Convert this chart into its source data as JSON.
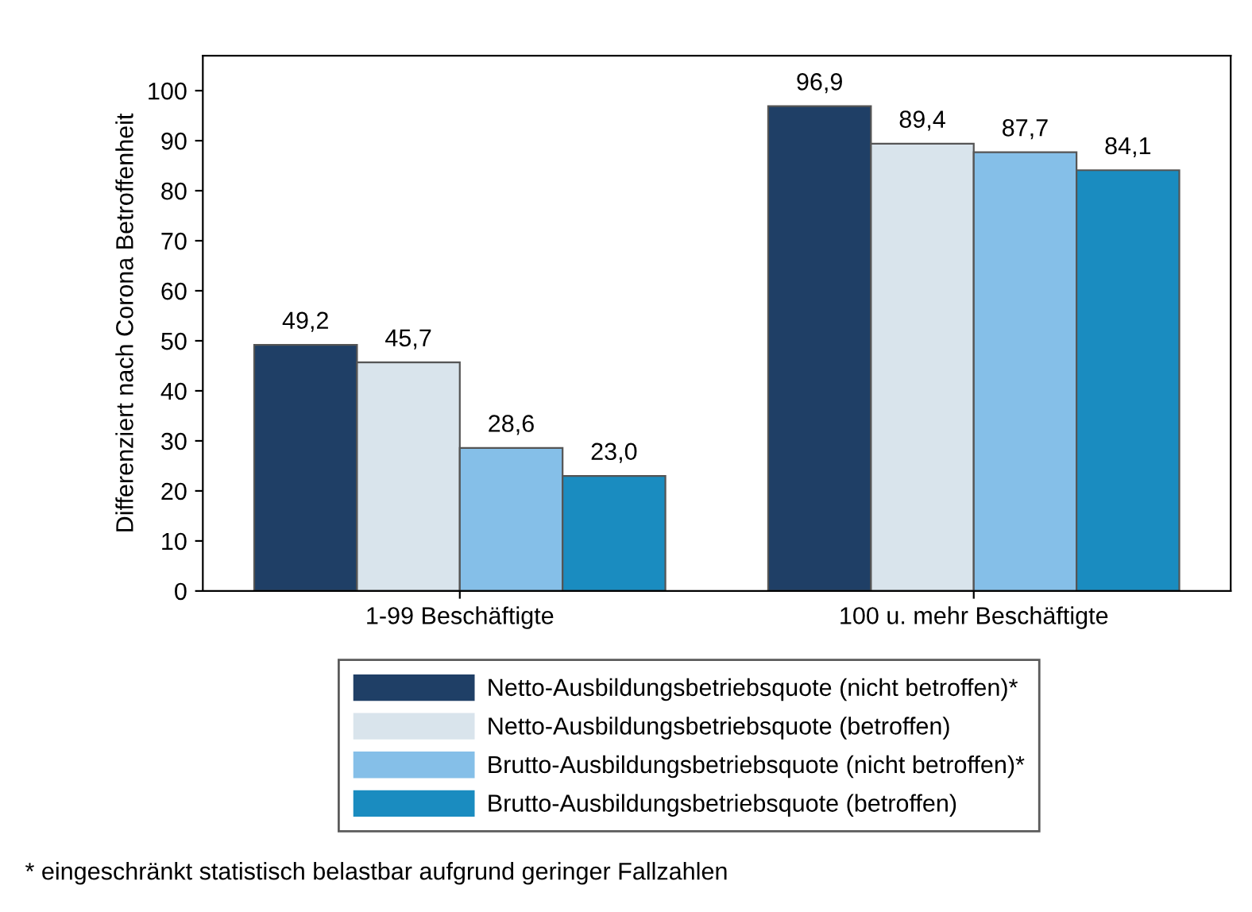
{
  "chart_data": {
    "type": "bar",
    "ylabel": "Differenziert nach Corona Betroffenheit",
    "categories": [
      "1-99 Beschäftigte",
      "100 u. mehr Beschäftigte"
    ],
    "series": [
      {
        "name": "Netto-Ausbildungsbetriebsquote (nicht betroffen)*",
        "color": "#1f3f66",
        "values": [
          49.2,
          96.9
        ],
        "value_labels": [
          "49,2",
          "96,9"
        ]
      },
      {
        "name": "Netto-Ausbildungsbetriebsquote (betroffen)",
        "color": "#d9e4ec",
        "values": [
          45.7,
          89.4
        ],
        "value_labels": [
          "45,7",
          "89,4"
        ]
      },
      {
        "name": "Brutto-Ausbildungsbetriebsquote (nicht betroffen)*",
        "color": "#85bfe8",
        "values": [
          28.6,
          87.7
        ],
        "value_labels": [
          "28,6",
          "87,7"
        ]
      },
      {
        "name": "Brutto-Ausbildungsbetriebsquote (betroffen)",
        "color": "#1a8cc0",
        "values": [
          23.0,
          84.1
        ],
        "value_labels": [
          "23,0",
          "84,1"
        ]
      }
    ],
    "ylim": [
      0,
      107
    ],
    "yticks": [
      0,
      10,
      20,
      30,
      40,
      50,
      60,
      70,
      80,
      90,
      100
    ],
    "grid": false,
    "legend": "bottom",
    "annotations": [
      "* eingeschränkt statistisch belastbar aufgrund geringer Fallzahlen"
    ]
  }
}
